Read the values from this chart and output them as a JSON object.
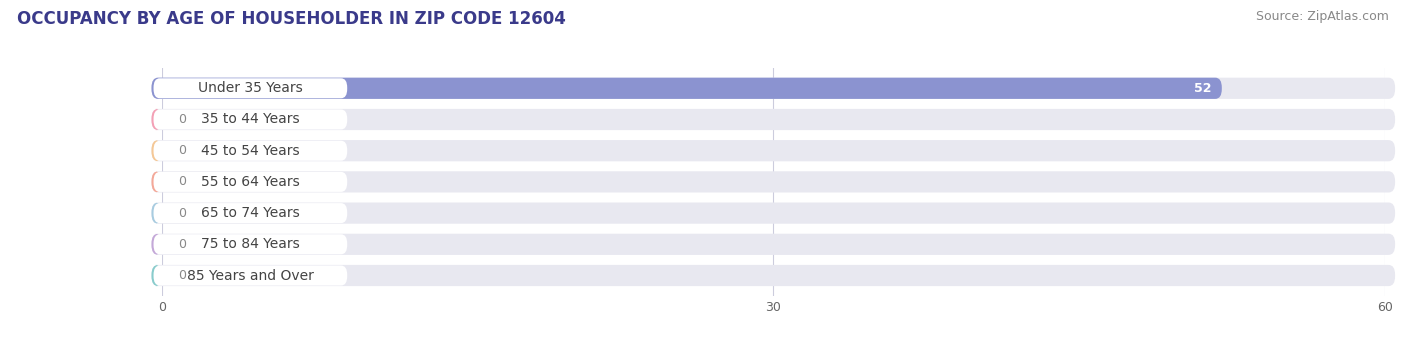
{
  "title": "OCCUPANCY BY AGE OF HOUSEHOLDER IN ZIP CODE 12604",
  "source": "Source: ZipAtlas.com",
  "categories": [
    "Under 35 Years",
    "35 to 44 Years",
    "45 to 54 Years",
    "55 to 64 Years",
    "65 to 74 Years",
    "75 to 84 Years",
    "85 Years and Over"
  ],
  "values": [
    52,
    0,
    0,
    0,
    0,
    0,
    0
  ],
  "bar_colors": [
    "#8b93d0",
    "#f4a0b5",
    "#f5c896",
    "#f4a898",
    "#a8cce0",
    "#c4a8d8",
    "#88cccc"
  ],
  "xlim_data": [
    0,
    60
  ],
  "xticks": [
    0,
    30,
    60
  ],
  "fig_bg": "#ffffff",
  "bar_bg": "#e8e8f0",
  "label_bg": "#ffffff",
  "grid_color": "#ccccdd",
  "title_fontsize": 12,
  "source_fontsize": 9,
  "label_fontsize": 10,
  "value_fontsize": 9,
  "title_color": "#3a3a8a",
  "source_color": "#888888",
  "label_color": "#444444",
  "value_color_inside": "#ffffff",
  "value_color_outside": "#888888"
}
